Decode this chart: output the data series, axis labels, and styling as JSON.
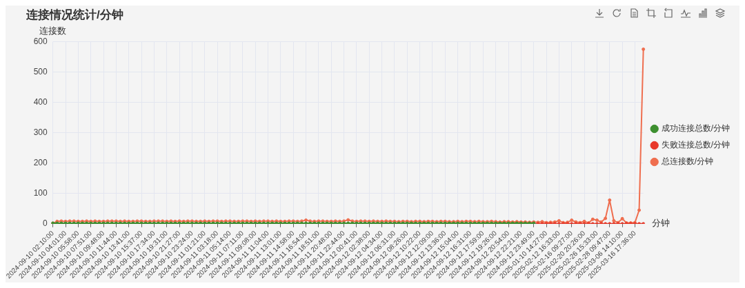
{
  "chart_data": {
    "type": "line",
    "title": "连接情况统计/分钟",
    "ylabel": "连接数",
    "xlabel": "分钟",
    "categories": [
      "2024-09-10 02:10:00",
      null,
      null,
      "2024-09-10 04:01:00",
      null,
      null,
      "2024-09-10 05:58:00",
      null,
      null,
      "2024-09-10 07:51:00",
      null,
      null,
      "2024-09-10 09:48:00",
      null,
      null,
      "2024-09-10 11:44:00",
      null,
      null,
      "2024-09-10 13:41:00",
      null,
      null,
      "2024-09-10 15:37:00",
      null,
      null,
      "2024-09-10 17:34:00",
      null,
      null,
      "2024-09-10 19:31:00",
      null,
      null,
      "2024-09-10 21:27:00",
      null,
      null,
      "2024-09-10 23:24:00",
      null,
      null,
      "2024-09-11 01:21:00",
      null,
      null,
      "2024-09-11 03:18:00",
      null,
      null,
      "2024-09-11 05:14:00",
      null,
      null,
      "2024-09-11 07:11:00",
      null,
      null,
      "2024-09-11 09:08:00",
      null,
      null,
      "2024-09-11 11:04:00",
      null,
      null,
      "2024-09-11 13:01:00",
      null,
      null,
      "2024-09-11 14:58:00",
      null,
      null,
      "2024-09-11 16:54:00",
      null,
      null,
      "2024-09-11 18:51:00",
      null,
      null,
      "2024-09-11 20:48:00",
      null,
      null,
      "2024-09-11 22:44:00",
      null,
      null,
      "2024-09-12 00:41:00",
      null,
      null,
      "2024-09-12 02:38:00",
      null,
      null,
      "2024-09-12 04:34:00",
      null,
      null,
      "2024-09-12 06:31:00",
      null,
      null,
      "2024-09-12 08:26:00",
      null,
      null,
      "2024-09-12 10:22:00",
      null,
      null,
      "2024-09-12 12:09:00",
      null,
      null,
      "2024-09-12 13:36:00",
      null,
      null,
      "2024-09-12 15:04:00",
      null,
      null,
      "2024-09-12 16:31:00",
      null,
      null,
      "2024-09-12 17:59:00",
      null,
      null,
      "2024-09-12 19:26:00",
      null,
      null,
      "2024-09-12 20:54:00",
      null,
      null,
      "2024-09-12 22:21:00",
      null,
      null,
      "2024-09-12 23:49:00",
      null,
      null,
      "2025-01-10 14:27:00",
      null,
      null,
      "2025-02-12 16:33:00",
      null,
      null,
      "2025-02-16 09:27:00",
      null,
      null,
      "2025-02-20 20:26:00",
      null,
      null,
      "2025-02-26 15:33:00",
      null,
      null,
      "2025-02-28 09:47:00",
      null,
      null,
      "2025-03-06 14:10:00",
      null,
      null,
      "2025-03-16 17:36:00",
      null,
      null
    ],
    "series": [
      {
        "name": "成功连接总数/分钟",
        "color": "#3d8f2f",
        "values": [
          2,
          2,
          2,
          2,
          2,
          2,
          2,
          2,
          2,
          2,
          2,
          2,
          2,
          2,
          2,
          2,
          2,
          2,
          2,
          2,
          2,
          2,
          2,
          2,
          2,
          2,
          2,
          2,
          2,
          2,
          2,
          2,
          2,
          2,
          2,
          2,
          2,
          2,
          2,
          2,
          2,
          2,
          2,
          2,
          2,
          2,
          2,
          2,
          2,
          2,
          2,
          2,
          2,
          2,
          2,
          2,
          2,
          2,
          2,
          2,
          2,
          2,
          2,
          2,
          2,
          2,
          2,
          2,
          2,
          2,
          2,
          2,
          2,
          2,
          2,
          2,
          2,
          2,
          2,
          2,
          2,
          2,
          2,
          2,
          2,
          2,
          2,
          2,
          2,
          2,
          2,
          2,
          2,
          2,
          2,
          2,
          2,
          2,
          2,
          2,
          2,
          2,
          2,
          2,
          2,
          2,
          2,
          2,
          2,
          2,
          2,
          2,
          2,
          2,
          2,
          null,
          null,
          null,
          null,
          null,
          null,
          null,
          null,
          null,
          null,
          null,
          null,
          null,
          null,
          null,
          null,
          null,
          null,
          null,
          null,
          null,
          null,
          null,
          null,
          null,
          null
        ]
      },
      {
        "name": "失败连接总数/分钟",
        "color": "#e8382a",
        "values": [
          null,
          null,
          null,
          null,
          null,
          null,
          null,
          null,
          null,
          null,
          null,
          null,
          null,
          null,
          null,
          null,
          null,
          null,
          null,
          null,
          null,
          null,
          null,
          null,
          null,
          null,
          null,
          null,
          null,
          null,
          null,
          null,
          null,
          null,
          null,
          null,
          null,
          null,
          null,
          null,
          null,
          null,
          null,
          null,
          null,
          null,
          null,
          null,
          null,
          null,
          null,
          null,
          null,
          null,
          null,
          null,
          null,
          null,
          null,
          null,
          null,
          null,
          null,
          null,
          null,
          null,
          null,
          null,
          null,
          null,
          null,
          null,
          null,
          null,
          null,
          null,
          null,
          null,
          null,
          null,
          null,
          null,
          null,
          null,
          null,
          null,
          null,
          null,
          null,
          null,
          null,
          null,
          null,
          null,
          null,
          null,
          null,
          null,
          null,
          null,
          null,
          null,
          null,
          null,
          null,
          null,
          null,
          null,
          null,
          null,
          null,
          null,
          null,
          null,
          null,
          0,
          0,
          0,
          0,
          0,
          0,
          0,
          0,
          0,
          0,
          0,
          0,
          0,
          0,
          0,
          0,
          0,
          0,
          0,
          0,
          0,
          0,
          0,
          0,
          0,
          0
        ]
      },
      {
        "name": "总连接数/分钟",
        "color": "#ef6e4f",
        "values": [
          2,
          8,
          9,
          8,
          9,
          9,
          8,
          8,
          9,
          8,
          9,
          8,
          8,
          9,
          9,
          9,
          8,
          9,
          8,
          8,
          9,
          9,
          8,
          8,
          9,
          9,
          9,
          8,
          9,
          8,
          9,
          8,
          9,
          9,
          8,
          8,
          9,
          8,
          9,
          9,
          8,
          9,
          9,
          8,
          8,
          9,
          9,
          8,
          9,
          8,
          9,
          9,
          8,
          9,
          8,
          8,
          9,
          9,
          8,
          9,
          12,
          9,
          8,
          9,
          9,
          8,
          8,
          9,
          8,
          9,
          13,
          9,
          8,
          9,
          9,
          8,
          9,
          8,
          8,
          9,
          8,
          8,
          7,
          8,
          8,
          7,
          8,
          8,
          7,
          8,
          8,
          7,
          8,
          8,
          7,
          7,
          8,
          7,
          8,
          8,
          7,
          8,
          7,
          7,
          8,
          7,
          6,
          7,
          7,
          6,
          7,
          6,
          6,
          5,
          6,
          5,
          7,
          4,
          5,
          6,
          10,
          4,
          5,
          12,
          6,
          4,
          8,
          3,
          15,
          12,
          6,
          18,
          78,
          10,
          4,
          17,
          3,
          3,
          4,
          45,
          575
        ]
      }
    ],
    "ylim": [
      0,
      600
    ],
    "yticks": [
      0,
      100,
      200,
      300,
      400,
      500,
      600
    ],
    "grid": true,
    "legend": "right",
    "marker": "circle",
    "line_style": "solid"
  }
}
